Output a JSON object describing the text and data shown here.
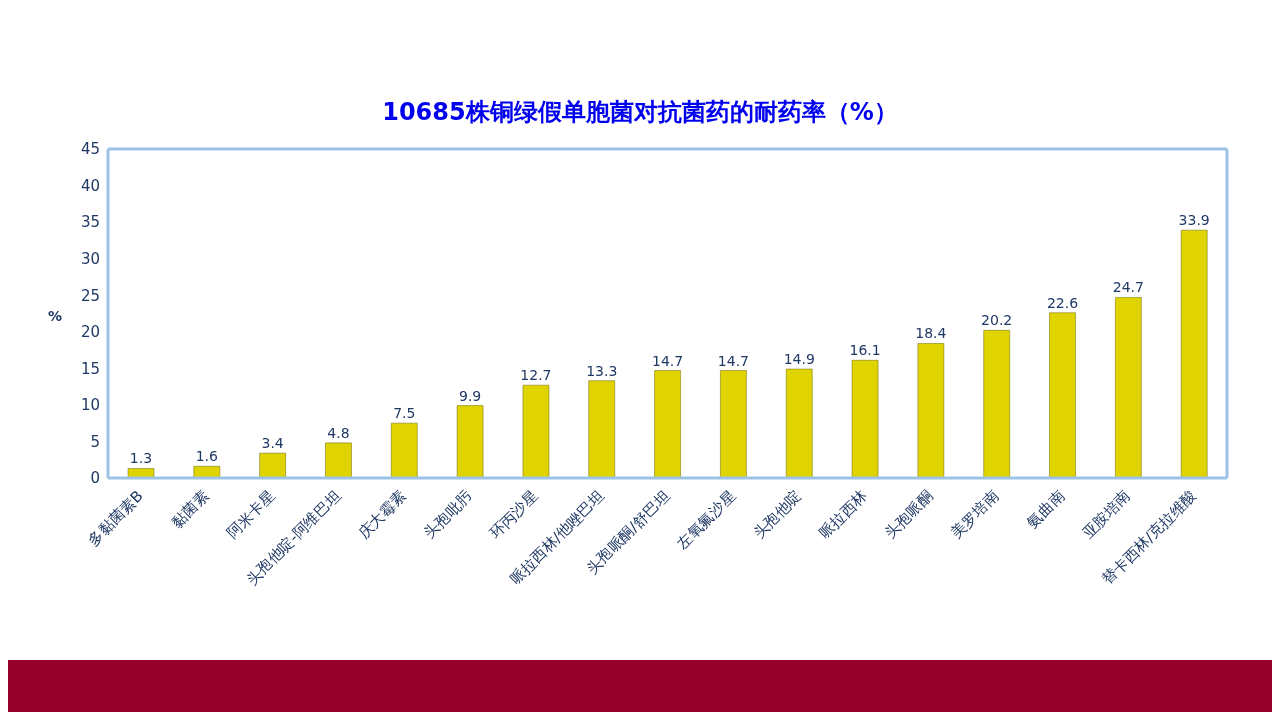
{
  "chart_data": {
    "type": "bar",
    "title": "10685株铜绿假单胞菌对抗菌药的耐药率（%）",
    "ylabel": "%",
    "categories": [
      "多黏菌素B",
      "黏菌素",
      "阿米卡星",
      "头孢他啶-阿维巴坦",
      "庆大霉素",
      "头孢吡肟",
      "环丙沙星",
      "哌拉西林/他唑巴坦",
      "头孢哌酮/舒巴坦",
      "左氧氟沙星",
      "头孢他啶",
      "哌拉西林",
      "头孢哌酮",
      "美罗培南",
      "氨曲南",
      "亚胺培南",
      "替卡西林/克拉维酸"
    ],
    "values": [
      1.3,
      1.6,
      3.4,
      4.8,
      7.5,
      9.9,
      12.7,
      13.3,
      14.7,
      14.7,
      14.9,
      16.1,
      18.4,
      20.2,
      22.6,
      24.7,
      33.9
    ],
    "color": "#e0d400",
    "ylim": [
      0,
      45
    ],
    "yticks": [
      0,
      5,
      10,
      15,
      20,
      25,
      30,
      35,
      40,
      45
    ],
    "grid": false,
    "data_labels": true
  }
}
